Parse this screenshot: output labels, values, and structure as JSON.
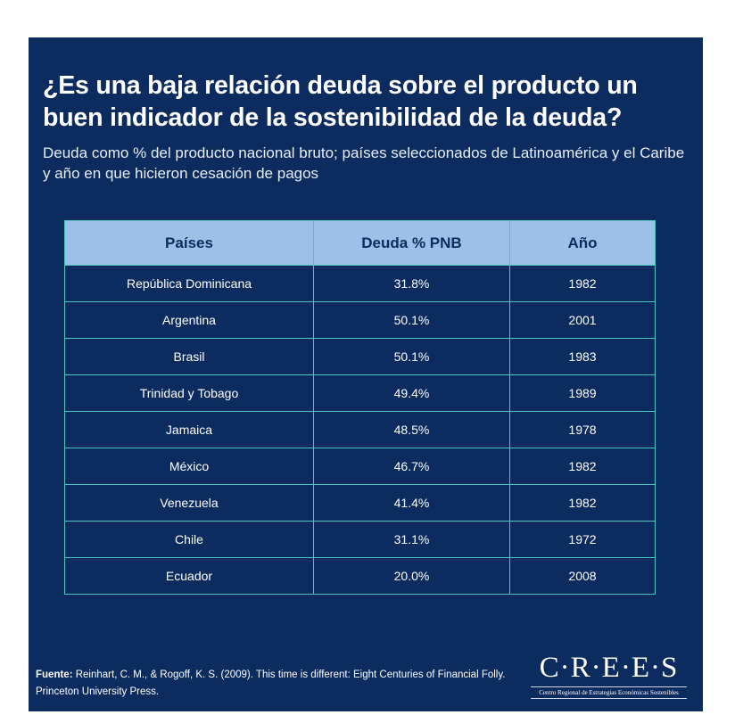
{
  "title": "¿Es una baja relación deuda sobre el producto un buen indicador de la sostenibilidad de la deuda?",
  "subtitle": "Deuda como % del producto nacional bruto; países seleccionados de Latinoamérica y el Caribe y año en que hicieron cesación de pagos",
  "table": {
    "headers": [
      "Países",
      "Deuda % PNB",
      "Año"
    ],
    "rows": [
      [
        "República Dominicana",
        "31.8%",
        "1982"
      ],
      [
        "Argentina",
        "50.1%",
        "2001"
      ],
      [
        "Brasil",
        "50.1%",
        "1983"
      ],
      [
        "Trinidad y Tobago",
        "49.4%",
        "1989"
      ],
      [
        "Jamaica",
        "48.5%",
        "1978"
      ],
      [
        "México",
        "46.7%",
        "1982"
      ],
      [
        "Venezuela",
        "41.4%",
        "1982"
      ],
      [
        "Chile",
        "31.1%",
        "1972"
      ],
      [
        "Ecuador",
        "20.0%",
        "2008"
      ]
    ]
  },
  "source": {
    "label": "Fuente:",
    "text": " Reinhart, C. M., & Rogoff, K. S. (2009). This time is different: Eight Centuries of Financial Folly. Princeton University Press."
  },
  "logo": {
    "name": "C·R·E·E·S",
    "tagline": "Centro Regional de Estrategias Económicas Sostenibles"
  }
}
